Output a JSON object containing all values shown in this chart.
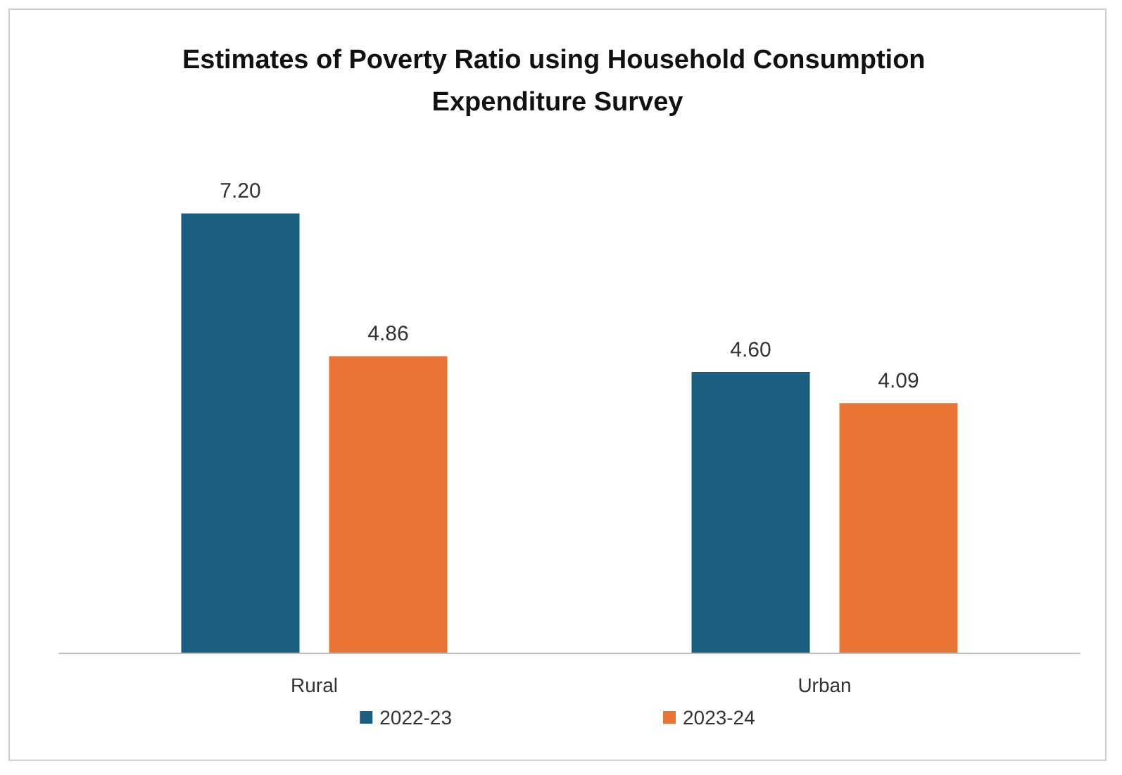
{
  "chart_data": {
    "type": "bar",
    "title": "Estimates of Poverty Ratio using Household Consumption Expenditure Survey",
    "categories": [
      "Rural",
      "Urban"
    ],
    "series": [
      {
        "name": "2022-23",
        "color": "#1a5f80",
        "values": [
          7.2,
          4.6
        ],
        "value_labels": [
          "7.20",
          "4.60"
        ]
      },
      {
        "name": "2023-24",
        "color": "#e97434",
        "values": [
          4.86,
          4.09
        ],
        "value_labels": [
          "4.86",
          "4.09"
        ]
      }
    ],
    "grid": false,
    "legend": "bottom"
  }
}
